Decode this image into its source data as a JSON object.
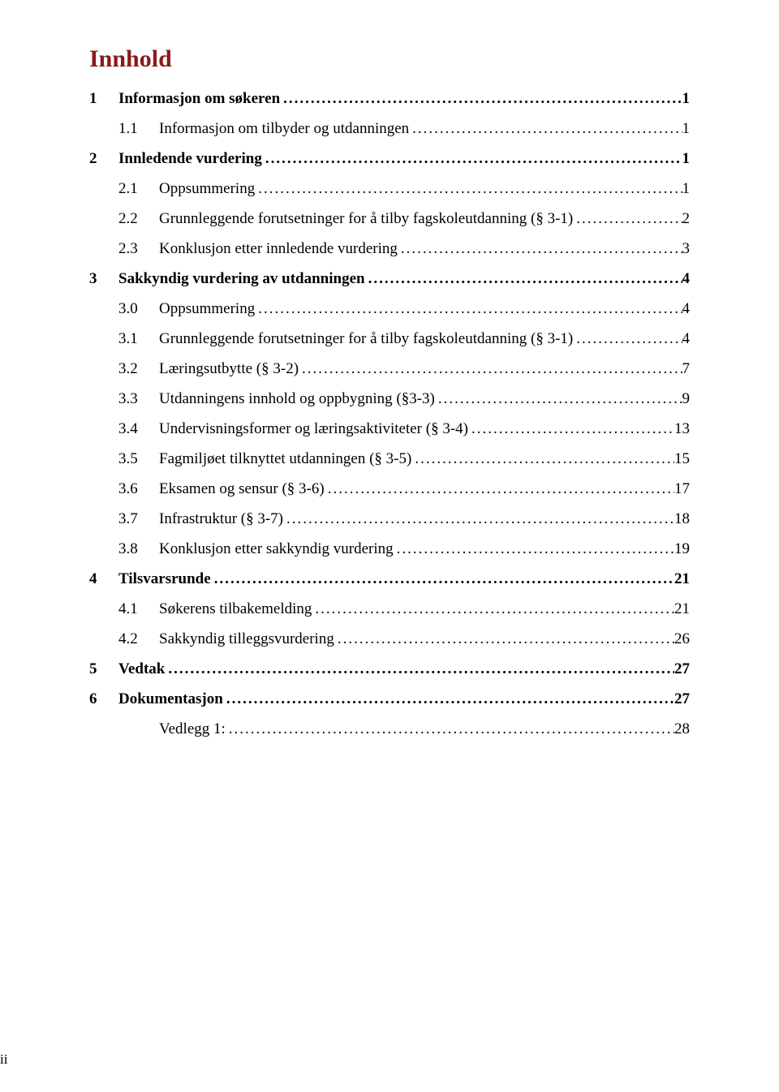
{
  "title": {
    "text": "Innhold",
    "color": "#8b1a1a",
    "fontsize": 30
  },
  "body_fontsize": 19,
  "indent_level1_num_width": 36,
  "indent_level2_left_pad": 36,
  "indent_level2_num_width": 50,
  "leader_char": ".",
  "toc": [
    {
      "level": 1,
      "num": "1",
      "label": "Informasjon om søkeren",
      "page": "1"
    },
    {
      "level": 2,
      "num": "1.1",
      "label": "Informasjon om tilbyder og utdanningen",
      "page": "1"
    },
    {
      "level": 1,
      "num": "2",
      "label": "Innledende vurdering",
      "page": "1"
    },
    {
      "level": 2,
      "num": "2.1",
      "label": "Oppsummering",
      "page": "1"
    },
    {
      "level": 2,
      "num": "2.2",
      "label": "Grunnleggende forutsetninger for å tilby fagskoleutdanning (§ 3-1)",
      "page": "2"
    },
    {
      "level": 2,
      "num": "2.3",
      "label": "Konklusjon etter innledende vurdering",
      "page": "3"
    },
    {
      "level": 1,
      "num": "3",
      "label": "Sakkyndig vurdering av utdanningen",
      "page": "4"
    },
    {
      "level": 2,
      "num": "3.0",
      "label": "Oppsummering",
      "page": "4"
    },
    {
      "level": 2,
      "num": "3.1",
      "label": "Grunnleggende forutsetninger for å tilby fagskoleutdanning (§ 3-1)",
      "page": "4"
    },
    {
      "level": 2,
      "num": "3.2",
      "label": "Læringsutbytte (§ 3-2)",
      "page": "7"
    },
    {
      "level": 2,
      "num": "3.3",
      "label": "Utdanningens innhold og oppbygning (§3-3)",
      "page": "9"
    },
    {
      "level": 2,
      "num": "3.4",
      "label": "Undervisningsformer og læringsaktiviteter (§ 3-4)",
      "page": "13"
    },
    {
      "level": 2,
      "num": "3.5",
      "label": "Fagmiljøet tilknyttet utdanningen (§ 3-5)",
      "page": "15"
    },
    {
      "level": 2,
      "num": "3.6",
      "label": "Eksamen og sensur (§ 3-6)",
      "page": "17"
    },
    {
      "level": 2,
      "num": "3.7",
      "label": "Infrastruktur (§ 3-7)",
      "page": "18"
    },
    {
      "level": 2,
      "num": "3.8",
      "label": "Konklusjon etter sakkyndig vurdering",
      "page": "19"
    },
    {
      "level": 1,
      "num": "4",
      "label": "Tilsvarsrunde",
      "page": "21"
    },
    {
      "level": 2,
      "num": "4.1",
      "label": "Søkerens tilbakemelding",
      "page": "21"
    },
    {
      "level": 2,
      "num": "4.2",
      "label": "Sakkyndig tilleggsvurdering",
      "page": "26"
    },
    {
      "level": 1,
      "num": "5",
      "label": "Vedtak",
      "page": "27"
    },
    {
      "level": 1,
      "num": "6",
      "label": "Dokumentasjon",
      "page": "27"
    },
    {
      "level": 2,
      "num": "",
      "label": "Vedlegg 1:",
      "page": "28"
    }
  ],
  "footer_page_number": "ii"
}
